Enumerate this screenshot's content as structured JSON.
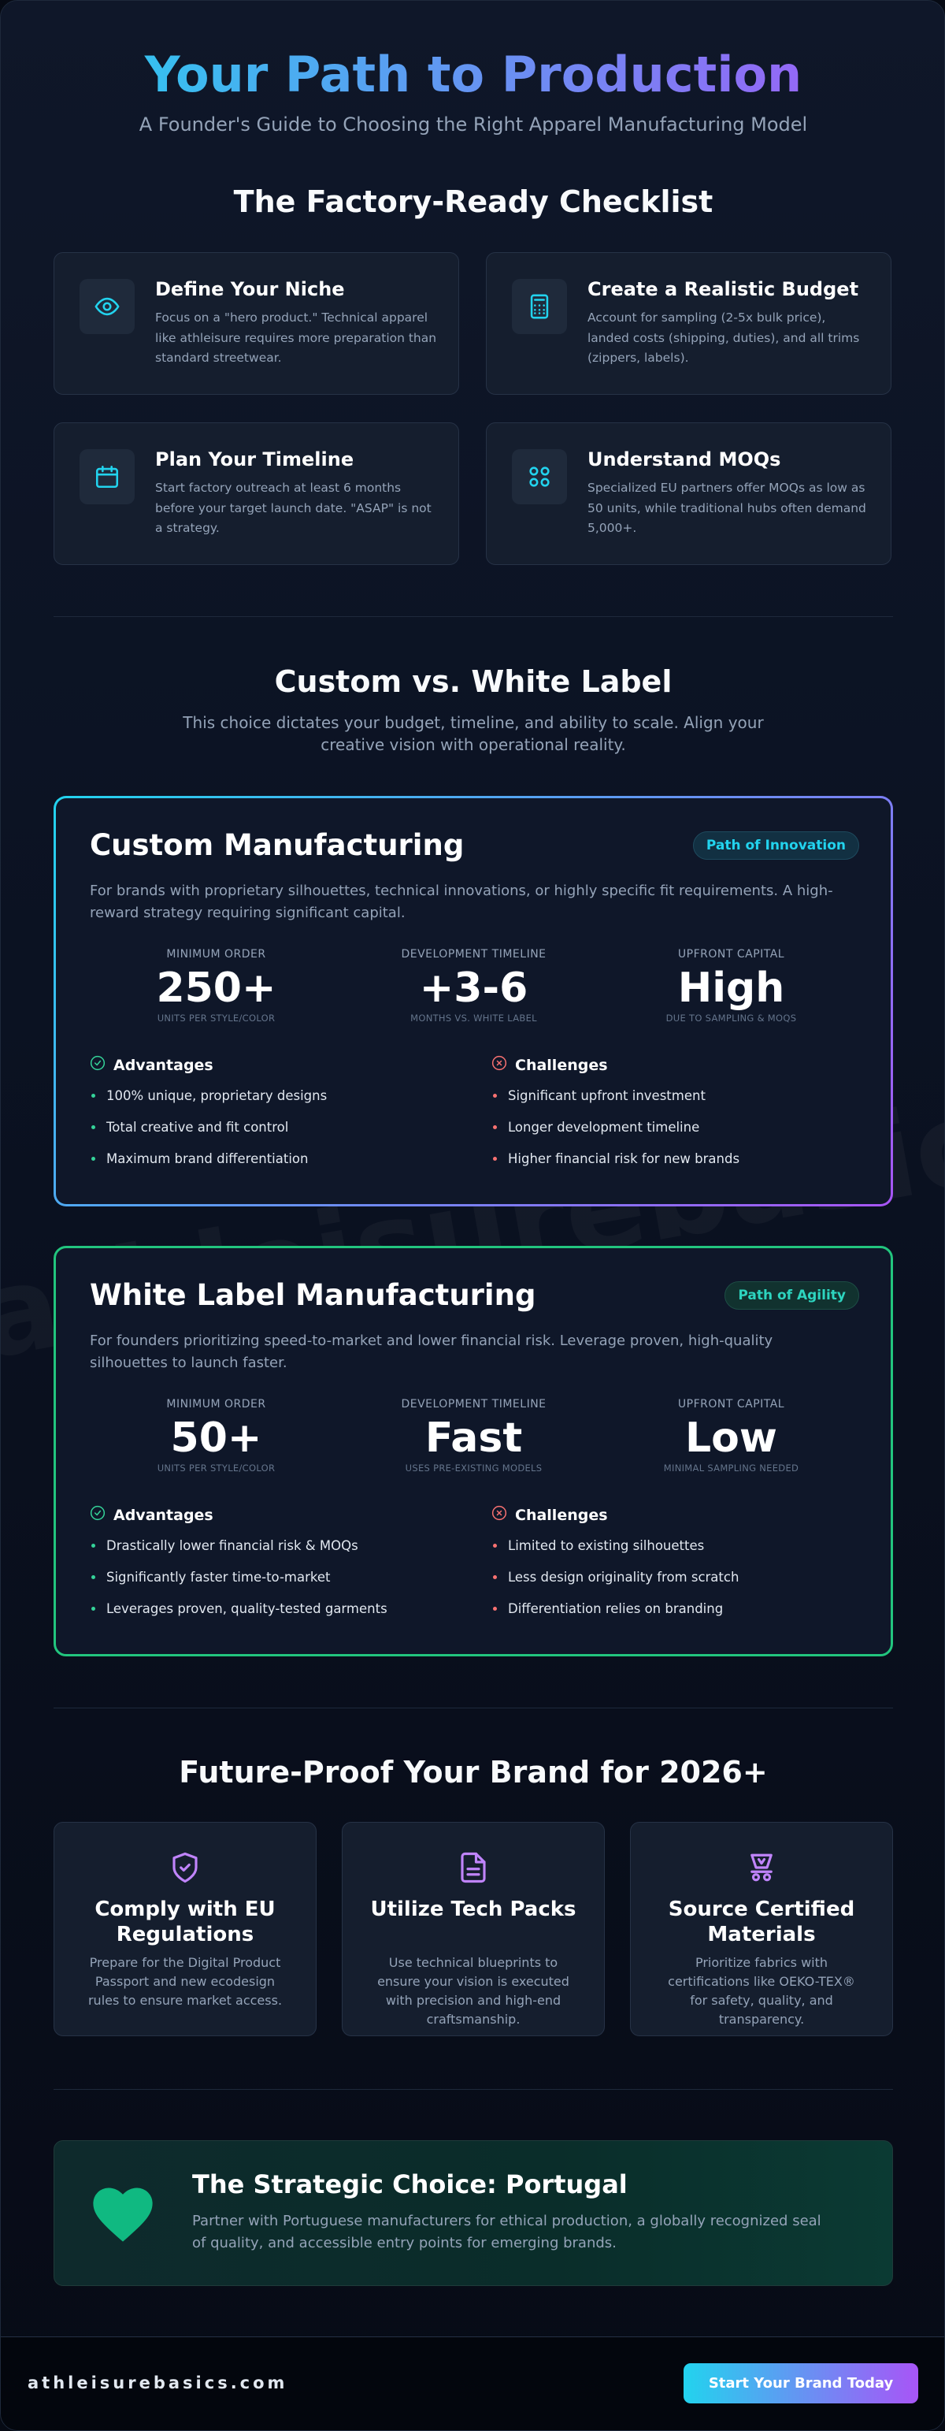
{
  "header": {
    "title": "Your Path to Production",
    "subtitle": "A Founder's Guide to Choosing the Right Apparel Manufacturing Model"
  },
  "checklist": {
    "title": "The Factory-Ready Checklist",
    "items": [
      {
        "title": "Define Your Niche",
        "text": "Focus on a \"hero product.\" Technical apparel like athleisure requires more preparation than standard streetwear."
      },
      {
        "title": "Create a Realistic Budget",
        "text": "Account for sampling (2-5x bulk price), landed costs (shipping, duties), and all trims (zippers, labels)."
      },
      {
        "title": "Plan Your Timeline",
        "text": "Start factory outreach at least 6 months before your target launch date. \"ASAP\" is not a strategy."
      },
      {
        "title": "Understand MOQs",
        "text": "Specialized EU partners offer MOQs as low as 50 units, while traditional hubs often demand 5,000+."
      }
    ]
  },
  "comparison": {
    "title": "Custom vs. White Label",
    "description": "This choice dictates your budget, timeline, and ability to scale. Align your creative vision with operational reality.",
    "cards": [
      {
        "title": "Custom Manufacturing",
        "badge": "Path of Innovation",
        "description": "For brands with proprietary silhouettes, technical innovations, or highly specific fit requirements. A high-reward strategy requiring significant capital.",
        "stats": [
          {
            "label": "MINIMUM ORDER",
            "value": "250+",
            "sub": "UNITS PER STYLE/COLOR"
          },
          {
            "label": "DEVELOPMENT TIMELINE",
            "value": "+3-6",
            "sub": "MONTHS VS. WHITE LABEL"
          },
          {
            "label": "UPFRONT CAPITAL",
            "value": "High",
            "sub": "DUE TO SAMPLING & MOQS"
          }
        ],
        "advantages_title": "Advantages",
        "advantages": [
          "100% unique, proprietary designs",
          "Total creative and fit control",
          "Maximum brand differentiation"
        ],
        "challenges_title": "Challenges",
        "challenges": [
          "Significant upfront investment",
          "Longer development timeline",
          "Higher financial risk for new brands"
        ]
      },
      {
        "title": "White Label Manufacturing",
        "badge": "Path of Agility",
        "description": "For founders prioritizing speed-to-market and lower financial risk. Leverage proven, high-quality silhouettes to launch faster.",
        "stats": [
          {
            "label": "MINIMUM ORDER",
            "value": "50+",
            "sub": "UNITS PER STYLE/COLOR"
          },
          {
            "label": "DEVELOPMENT TIMELINE",
            "value": "Fast",
            "sub": "USES PRE-EXISTING MODELS"
          },
          {
            "label": "UPFRONT CAPITAL",
            "value": "Low",
            "sub": "MINIMAL SAMPLING NEEDED"
          }
        ],
        "advantages_title": "Advantages",
        "advantages": [
          "Drastically lower financial risk & MOQs",
          "Significantly faster time-to-market",
          "Leverages proven, quality-tested garments"
        ],
        "challenges_title": "Challenges",
        "challenges": [
          "Limited to existing silhouettes",
          "Less design originality from scratch",
          "Differentiation relies on branding"
        ]
      }
    ]
  },
  "future": {
    "title": "Future-Proof Your Brand for 2026+",
    "items": [
      {
        "title": "Comply with EU Regulations",
        "text": "Prepare for the Digital Product Passport and new ecodesign rules to ensure market access."
      },
      {
        "title": "Utilize Tech Packs",
        "text": "Use technical blueprints to ensure your vision is executed with precision and high-end craftsmanship."
      },
      {
        "title": "Source Certified Materials",
        "text": "Prioritize fabrics with certifications like OEKO-TEX® for safety, quality, and transparency."
      }
    ]
  },
  "cta": {
    "title": "The Strategic Choice: Portugal",
    "text": "Partner with Portuguese manufacturers for ethical production, a globally recognized seal of quality, and accessible entry points for emerging brands."
  },
  "footer": {
    "brand": "athleisurebasics.com",
    "button": "Start Your Brand Today"
  }
}
